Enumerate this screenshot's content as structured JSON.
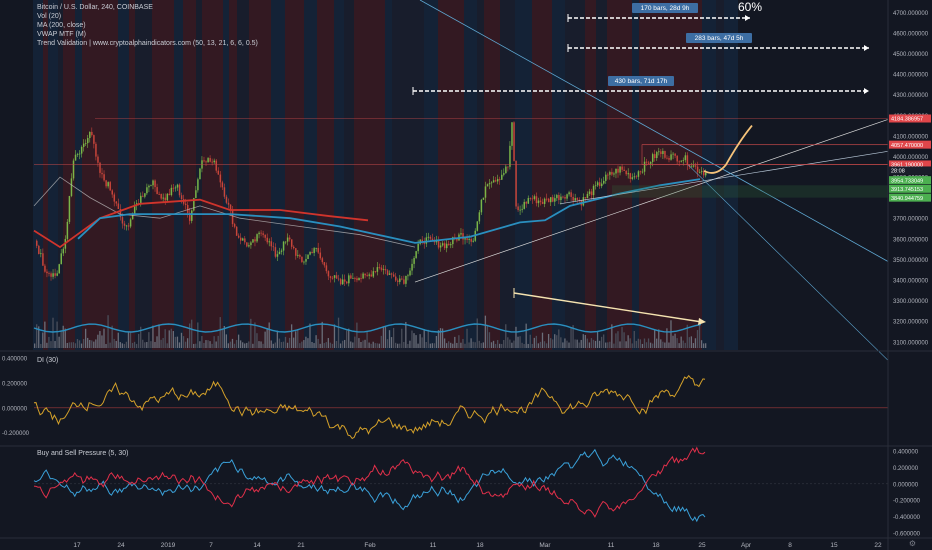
{
  "header": {
    "legend": [
      "Bitcoin / U.S. Dollar, 240, COINBASE",
      "Vol (20)",
      "MA (200, close)",
      "VWAP MTF (M)",
      "Trend Validation | www.cryptoalphaindicators.com (50, 13, 21, 6, 6, 0.5)"
    ],
    "percent_label": "60%",
    "toolbar_icon": "gear-icon"
  },
  "chart_data": [
    {
      "type": "candlestick",
      "symbol": "Bitcoin / U.S. Dollar, 240, COINBASE",
      "ylim": [
        3060,
        4760
      ],
      "y_ticks": [
        "3100.000000",
        "3200.000000",
        "3300.000000",
        "3400.000000",
        "3500.000000",
        "3600.000000",
        "3700.000000",
        "3800.000000",
        "3900.000000",
        "4000.000000",
        "4100.000000",
        "4200.000000",
        "4300.000000",
        "4400.000000",
        "4500.000000",
        "4600.000000",
        "4700.000000"
      ],
      "x_ticks": [
        "17",
        "24",
        "2019",
        "7",
        "14",
        "21",
        "Feb",
        "11",
        "18",
        "Mar",
        "11",
        "18",
        "25",
        "Apr",
        "8",
        "15",
        "22"
      ],
      "path_points": [
        [
          0,
          3600
        ],
        [
          5,
          3450
        ],
        [
          10,
          3420
        ],
        [
          14,
          3580
        ],
        [
          18,
          3980
        ],
        [
          22,
          4030
        ],
        [
          26,
          4120
        ],
        [
          30,
          3920
        ],
        [
          34,
          3860
        ],
        [
          38,
          3760
        ],
        [
          42,
          3640
        ],
        [
          48,
          3780
        ],
        [
          54,
          3880
        ],
        [
          60,
          3790
        ],
        [
          66,
          3860
        ],
        [
          72,
          3700
        ],
        [
          78,
          4000
        ],
        [
          84,
          3960
        ],
        [
          88,
          3830
        ],
        [
          94,
          3620
        ],
        [
          100,
          3560
        ],
        [
          106,
          3640
        ],
        [
          112,
          3520
        ],
        [
          118,
          3600
        ],
        [
          124,
          3480
        ],
        [
          130,
          3560
        ],
        [
          136,
          3440
        ],
        [
          142,
          3380
        ],
        [
          148,
          3420
        ],
        [
          154,
          3410
        ],
        [
          160,
          3470
        ],
        [
          166,
          3420
        ],
        [
          172,
          3400
        ],
        [
          180,
          3600
        ],
        [
          186,
          3580
        ],
        [
          192,
          3570
        ],
        [
          198,
          3620
        ],
        [
          204,
          3600
        ],
        [
          210,
          3880
        ],
        [
          216,
          3900
        ],
        [
          220,
          3950
        ],
        [
          222,
          4160
        ],
        [
          224,
          3720
        ],
        [
          230,
          3800
        ],
        [
          236,
          3780
        ],
        [
          242,
          3800
        ],
        [
          248,
          3820
        ],
        [
          254,
          3780
        ],
        [
          260,
          3840
        ],
        [
          266,
          3900
        ],
        [
          272,
          3940
        ],
        [
          278,
          3900
        ],
        [
          284,
          3960
        ],
        [
          290,
          4020
        ],
        [
          296,
          4000
        ],
        [
          302,
          3990
        ],
        [
          308,
          3940
        ],
        [
          312,
          3920
        ]
      ],
      "horizontal_levels": [
        {
          "label": "4184.386957",
          "value": 4184.386957
        },
        {
          "label": "4057.470000",
          "value": 4057.47
        },
        {
          "label": "3961.190000",
          "value": 3961.19
        },
        {
          "label": "28:08",
          "value": 3932
        },
        {
          "label": "3954.733049",
          "value": 3885
        },
        {
          "label": "3913.745153",
          "value": 3843
        },
        {
          "label": "3840.944759",
          "value": 3800
        }
      ],
      "measure_labels": [
        "170 bars, 28d 9h",
        "283 bars, 47d 5h",
        "430 bars, 71d 17h"
      ]
    },
    {
      "type": "line",
      "title": "DI (30)",
      "ylim": [
        -0.3,
        0.45
      ],
      "y_ticks": [
        "0.400000",
        "0.200000",
        "0.000000",
        "-0.200000"
      ]
    },
    {
      "type": "line",
      "title": "Buy and Sell Pressure (5, 30)",
      "ylim": [
        -0.65,
        0.45
      ],
      "y_ticks": [
        "0.400000",
        "0.200000",
        "0.000000",
        "-0.200000",
        "-0.400000",
        "-0.600000"
      ]
    }
  ]
}
